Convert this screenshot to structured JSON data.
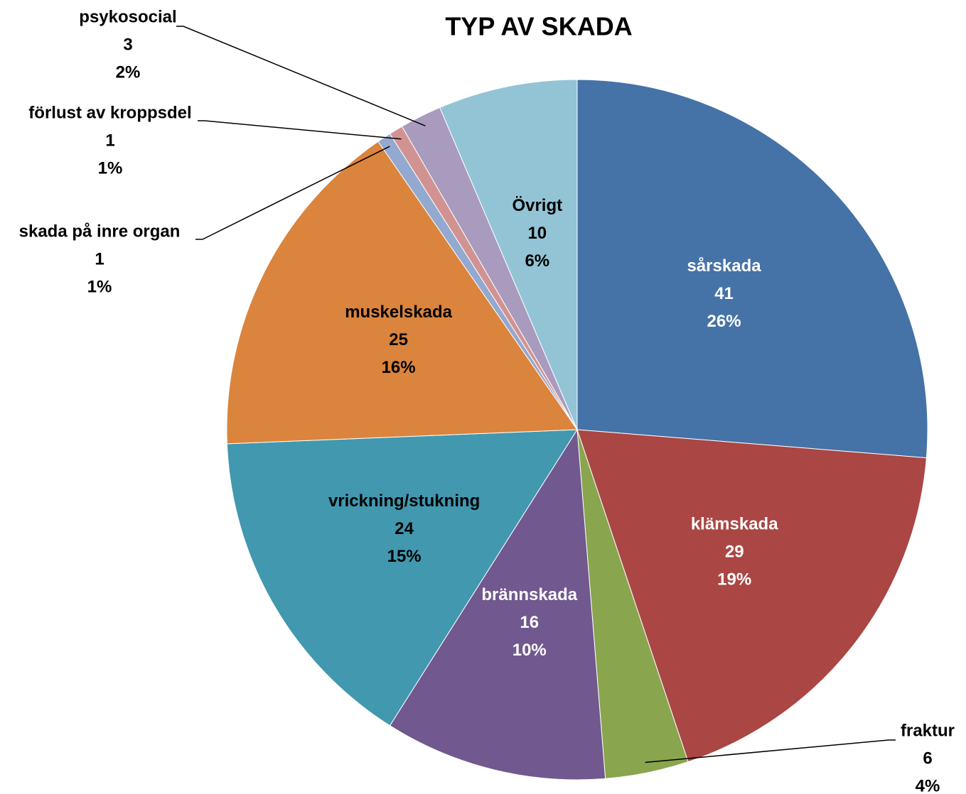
{
  "chart_data": {
    "type": "pie",
    "title": "TYP AV SKADA",
    "categories": [
      "sårskada",
      "klämskada",
      "fraktur",
      "brännskada",
      "vrickning/stukning",
      "muskelskada",
      "skada på inre organ",
      "förlust av kroppsdel",
      "psykosocial",
      "Övrigt"
    ],
    "values": [
      41,
      29,
      6,
      16,
      24,
      25,
      1,
      1,
      3,
      10
    ],
    "percent_labels": [
      "26%",
      "19%",
      "4%",
      "10%",
      "15%",
      "16%",
      "1%",
      "1%",
      "2%",
      "6%"
    ],
    "colors": [
      "#4572a7",
      "#aa4643",
      "#89a54e",
      "#71588f",
      "#4198af",
      "#db843d",
      "#93a9cf",
      "#d19392",
      "#a99bbd",
      "#93c4d5"
    ]
  }
}
